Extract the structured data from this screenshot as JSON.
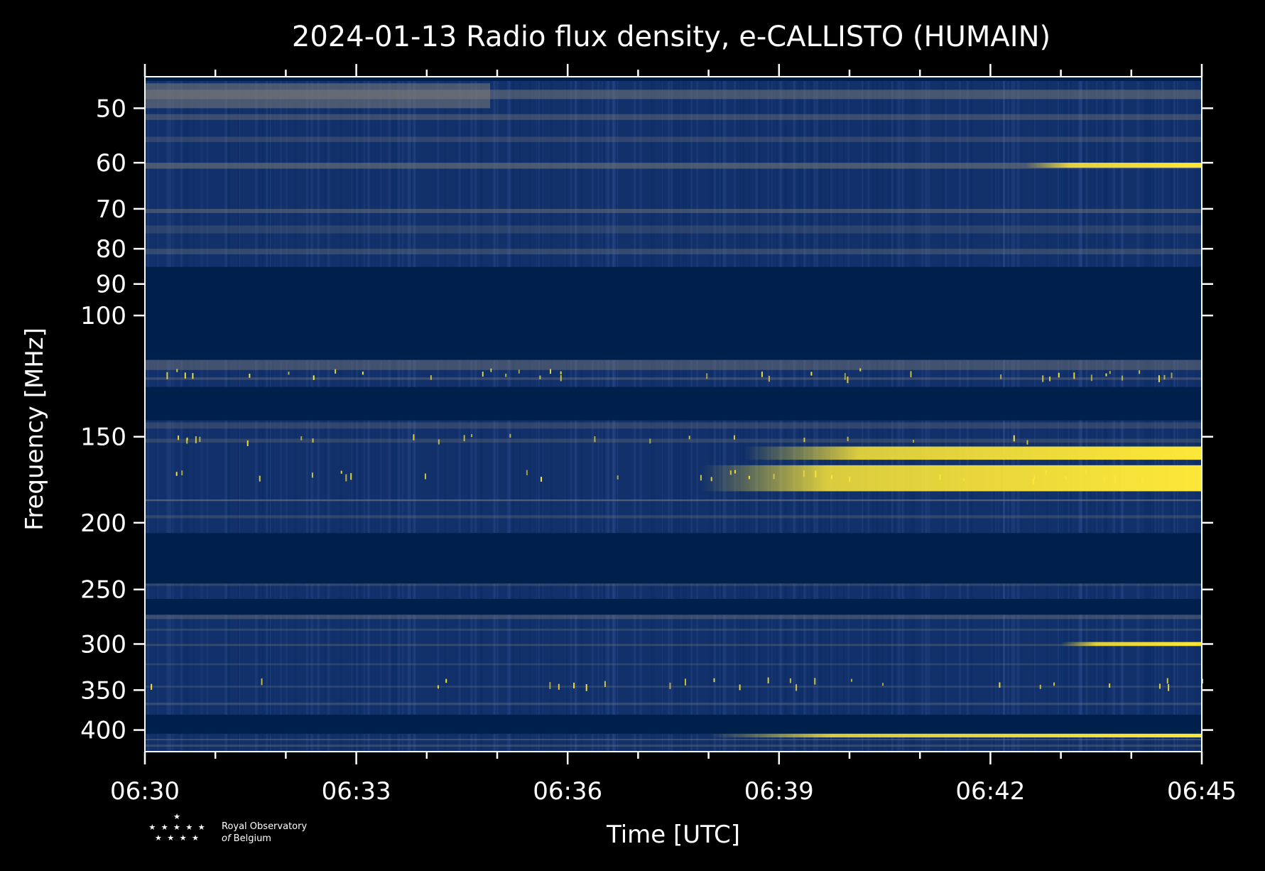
{
  "chart_data": {
    "type": "heatmap",
    "title": "2024-01-13 Radio flux density, e-CALLISTO (HUMAIN)",
    "xlabel": "Time [UTC]",
    "ylabel": "Frequency [MHz]",
    "x_ticks": [
      "06:30",
      "06:33",
      "06:36",
      "06:39",
      "06:42",
      "06:45"
    ],
    "x_minor_step_minutes": 1,
    "y_scale": "log",
    "y_ticks": [
      50,
      60,
      70,
      80,
      90,
      100,
      150,
      200,
      250,
      300,
      350,
      400
    ],
    "ylim": [
      45,
      430
    ],
    "xlim_minutes": [
      0,
      15
    ],
    "colormap": "cividis",
    "colors": {
      "background": "#000000",
      "low": "#00204c",
      "mid": "#7c7b78",
      "high": "#fde737"
    },
    "masked_bands_mhz": [
      [
        85,
        116
      ],
      [
        127,
        142
      ],
      [
        207,
        245
      ],
      [
        258,
        272
      ],
      [
        380,
        405
      ]
    ],
    "bright_features": [
      {
        "f_mhz": [
          155,
          162
        ],
        "t_minutes": [
          8.5,
          15
        ]
      },
      {
        "f_mhz": [
          165,
          180
        ],
        "t_minutes": [
          7.9,
          15
        ]
      },
      {
        "f_mhz": [
          60,
          61
        ],
        "t_minutes": [
          12.5,
          15
        ]
      },
      {
        "f_mhz": [
          405,
          410
        ],
        "t_minutes": [
          8,
          15
        ]
      },
      {
        "f_mhz": [
          298,
          302
        ],
        "t_minutes": [
          13,
          15
        ]
      }
    ]
  },
  "logo": {
    "line1": "Royal Observatory",
    "line2_prefix": "of",
    "line2_rest": "Belgium"
  }
}
